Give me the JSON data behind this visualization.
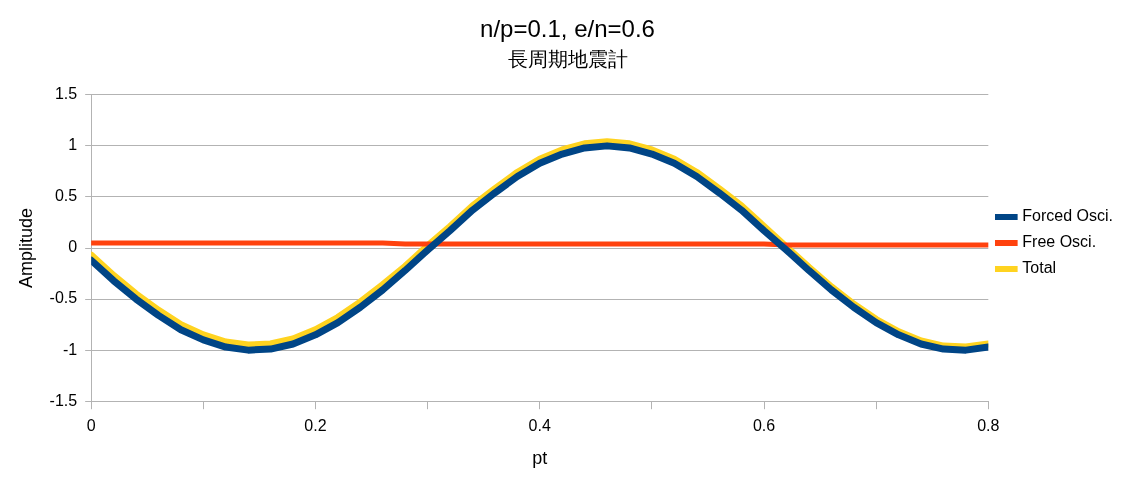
{
  "chart_data": {
    "type": "line",
    "title": "n/p=0.1, e/n=0.6",
    "subtitle": "長周期地震計",
    "xlabel": "pt",
    "ylabel": "Amplitude",
    "x": [
      0,
      0.02,
      0.04,
      0.06,
      0.08,
      0.1,
      0.12,
      0.14,
      0.16,
      0.18,
      0.2,
      0.22,
      0.24,
      0.26,
      0.28,
      0.3,
      0.32,
      0.34,
      0.36,
      0.38,
      0.4,
      0.42,
      0.44,
      0.46,
      0.48,
      0.5,
      0.52,
      0.54,
      0.56,
      0.58,
      0.6,
      0.62,
      0.64,
      0.66,
      0.68,
      0.7,
      0.72,
      0.74,
      0.76,
      0.78,
      0.8
    ],
    "series": [
      {
        "name": "Forced Osci.",
        "color": "#004586",
        "values": [
          -0.12,
          -0.32,
          -0.5,
          -0.66,
          -0.8,
          -0.9,
          -0.97,
          -1.0,
          -0.99,
          -0.94,
          -0.85,
          -0.73,
          -0.58,
          -0.41,
          -0.22,
          -0.02,
          0.17,
          0.37,
          0.54,
          0.7,
          0.83,
          0.92,
          0.98,
          1.0,
          0.98,
          0.92,
          0.83,
          0.7,
          0.54,
          0.37,
          0.17,
          -0.02,
          -0.22,
          -0.41,
          -0.58,
          -0.73,
          -0.85,
          -0.94,
          -0.99,
          -1.0,
          -0.97
        ]
      },
      {
        "name": "Free Osci.",
        "color": "#ff420e",
        "values": [
          0.05,
          0.05,
          0.05,
          0.05,
          0.05,
          0.05,
          0.05,
          0.05,
          0.05,
          0.05,
          0.05,
          0.05,
          0.05,
          0.05,
          0.04,
          0.04,
          0.04,
          0.04,
          0.04,
          0.04,
          0.04,
          0.04,
          0.04,
          0.04,
          0.04,
          0.04,
          0.04,
          0.04,
          0.04,
          0.04,
          0.04,
          0.03,
          0.03,
          0.03,
          0.03,
          0.03,
          0.03,
          0.03,
          0.03,
          0.03,
          0.03
        ]
      },
      {
        "name": "Total",
        "color": "#ffd320",
        "values": [
          -0.07,
          -0.27,
          -0.45,
          -0.61,
          -0.75,
          -0.85,
          -0.92,
          -0.95,
          -0.94,
          -0.89,
          -0.8,
          -0.68,
          -0.53,
          -0.36,
          -0.18,
          0.02,
          0.21,
          0.41,
          0.58,
          0.74,
          0.87,
          0.96,
          1.02,
          1.04,
          1.02,
          0.96,
          0.87,
          0.74,
          0.58,
          0.41,
          0.21,
          0.01,
          -0.19,
          -0.38,
          -0.55,
          -0.7,
          -0.82,
          -0.91,
          -0.96,
          -0.97,
          -0.94
        ]
      }
    ],
    "xlim": [
      0,
      0.8
    ],
    "xticks": [
      0,
      {
        "value": 0.1,
        "label": null
      },
      0.2,
      {
        "value": 0.3,
        "label": null
      },
      0.4,
      {
        "value": 0.5,
        "label": null
      },
      0.6,
      {
        "value": 0.7,
        "label": null
      },
      0.8
    ],
    "ylim": [
      -1.5,
      1.5
    ],
    "yticks": [
      -1.5,
      -1,
      -0.5,
      0,
      0.5,
      1,
      1.5
    ],
    "grid": "y",
    "legend": "right",
    "marker": "none",
    "line_style": "solid"
  }
}
